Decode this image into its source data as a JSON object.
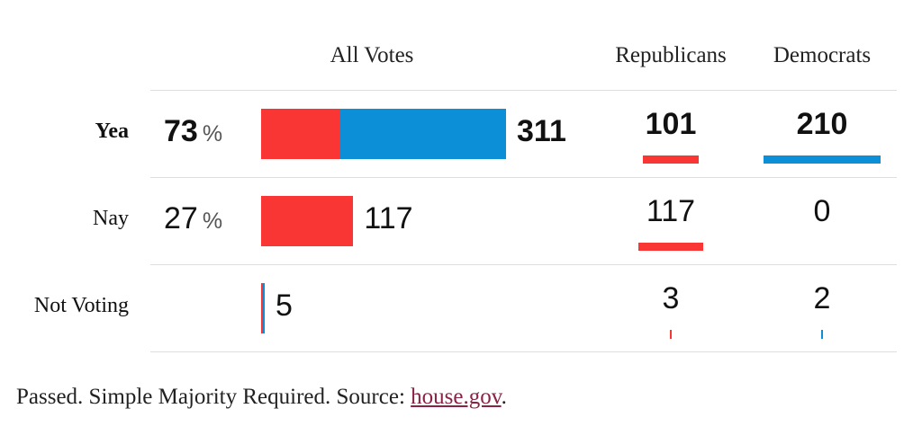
{
  "colors": {
    "republican": "#f93634",
    "democrat": "#0c8fd6",
    "link": "#8a2243"
  },
  "chart_data": {
    "type": "bar",
    "orientation": "horizontal",
    "stacked": true,
    "column_headers": {
      "all": "All Votes",
      "rep": "Republicans",
      "dem": "Democrats"
    },
    "rows": [
      {
        "label": "Yea",
        "percent": "73",
        "percent_unit": "%",
        "total": 311,
        "republicans": 101,
        "democrats": 210,
        "bold": true
      },
      {
        "label": "Nay",
        "percent": "27",
        "percent_unit": "%",
        "total": 117,
        "republicans": 117,
        "democrats": 0,
        "bold": false
      },
      {
        "label": "Not Voting",
        "percent": "",
        "percent_unit": "",
        "total": 5,
        "republicans": 3,
        "democrats": 2,
        "bold": false
      }
    ]
  },
  "footer": {
    "text": "Passed. Simple Majority Required. Source: ",
    "link_text": "house.gov",
    "trailing": "."
  }
}
